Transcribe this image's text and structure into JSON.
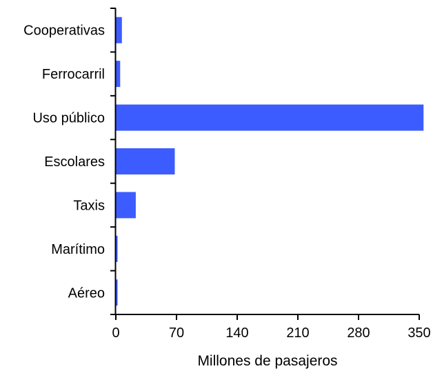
{
  "chart_data": {
    "type": "bar",
    "orientation": "horizontal",
    "categories": [
      "Cooperativas",
      "Ferrocarril",
      "Uso público",
      "Escolares",
      "Taxis",
      "Marítimo",
      "Aéreo"
    ],
    "values": [
      7,
      5,
      355,
      68,
      23,
      2,
      2
    ],
    "xlabel": "Millones de pasajeros",
    "ylabel": "",
    "xlim": [
      0,
      350
    ],
    "xticks": [
      "0",
      "70",
      "140",
      "210",
      "280",
      "350"
    ],
    "grid": false,
    "legend": "none",
    "colors": {
      "bar": "#3d5cff",
      "axis": "#000000"
    }
  }
}
